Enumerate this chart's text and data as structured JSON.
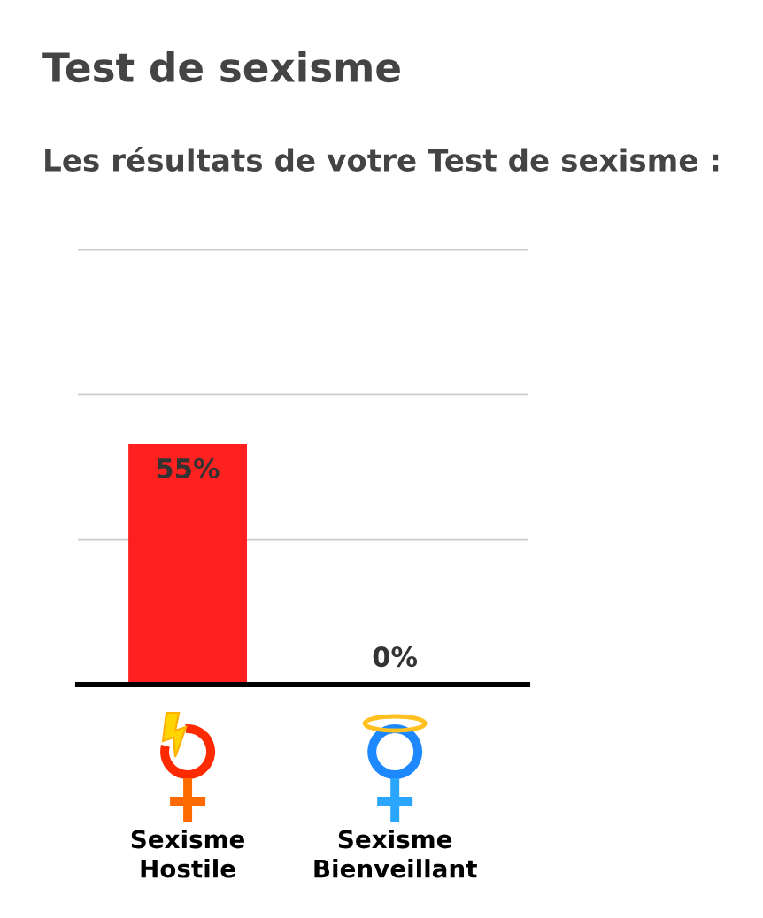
{
  "chart_data": {
    "type": "bar",
    "title": "Test de sexisme",
    "subtitle": "Les résultats de votre Test de sexisme :",
    "categories": [
      "Sexisme Hostile",
      "Sexisme Bienveillant"
    ],
    "values": [
      55,
      0
    ],
    "value_labels": [
      "55%",
      "0%"
    ],
    "color": "#ff2020",
    "ylim": [
      0,
      100
    ],
    "yticks": [
      {
        "value": 0,
        "label": null
      },
      {
        "value": 33.3,
        "label": null
      },
      {
        "value": 66.7,
        "label": null
      },
      {
        "value": 100,
        "label": null
      }
    ],
    "grid": "y",
    "tick_labels": "x"
  }
}
